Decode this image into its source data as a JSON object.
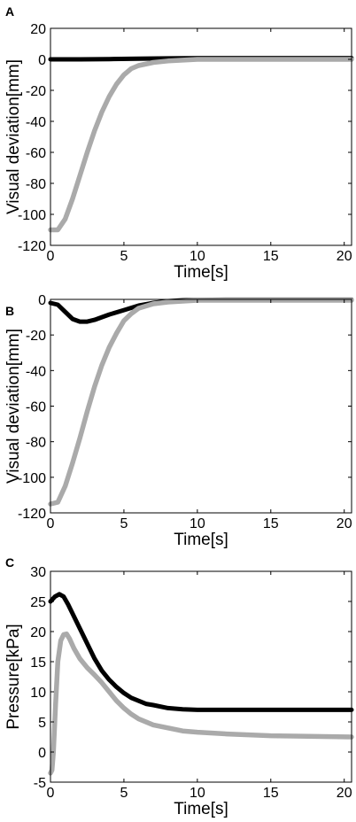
{
  "chart_data": [
    {
      "panel_letter": "A",
      "type": "line",
      "xlabel": "Time[s]",
      "ylabel": "Visual deviation[mm]",
      "xlim": [
        0,
        20.5
      ],
      "ylim": [
        -120,
        20
      ],
      "xticks": [
        0,
        5,
        10,
        15,
        20
      ],
      "yticks": [
        20,
        0,
        -20,
        -40,
        -60,
        -80,
        -100,
        -120
      ],
      "grid": false,
      "series": [
        {
          "color": "#000000",
          "x": [
            0,
            2,
            4,
            6,
            8,
            10,
            15,
            20.5
          ],
          "y": [
            0,
            0,
            0.2,
            0.4,
            0.6,
            0.8,
            0.8,
            0.8
          ]
        },
        {
          "color": "#aaaaaa",
          "x": [
            0,
            0.5,
            1,
            1.5,
            2,
            2.5,
            3,
            3.5,
            4,
            4.5,
            5,
            5.5,
            6,
            7,
            8,
            9,
            10,
            12,
            15,
            20.5
          ],
          "y": [
            -110,
            -110,
            -103,
            -90,
            -75,
            -60,
            -46,
            -34,
            -24,
            -16,
            -10,
            -6,
            -4,
            -2,
            -1,
            -0.5,
            0,
            0,
            0,
            0
          ]
        }
      ]
    },
    {
      "panel_letter": "B",
      "type": "line",
      "xlabel": "Time[s]",
      "ylabel": "Visual deviation[mm]",
      "xlim": [
        0,
        20.5
      ],
      "ylim": [
        -120,
        0
      ],
      "xticks": [
        0,
        5,
        10,
        15,
        20
      ],
      "yticks": [
        0,
        -20,
        -40,
        -60,
        -80,
        -100,
        -120
      ],
      "grid": false,
      "series": [
        {
          "color": "#000000",
          "x": [
            0,
            0.5,
            1,
            1.5,
            2,
            2.5,
            3,
            3.5,
            4,
            5,
            6,
            7,
            8,
            9,
            10,
            12,
            15,
            20.5
          ],
          "y": [
            -2,
            -3,
            -7,
            -11,
            -12.5,
            -12.5,
            -11.5,
            -10,
            -8.5,
            -6,
            -3.5,
            -2,
            -1,
            -0.5,
            -0.3,
            -0.2,
            -0.2,
            -0.2
          ]
        },
        {
          "color": "#aaaaaa",
          "x": [
            0,
            0.5,
            1,
            1.5,
            2,
            2.5,
            3,
            3.5,
            4,
            4.5,
            5,
            5.5,
            6,
            7,
            8,
            9,
            10,
            12,
            15,
            20.5
          ],
          "y": [
            -115,
            -114,
            -105,
            -92,
            -78,
            -63,
            -49,
            -37,
            -27,
            -19,
            -12,
            -8,
            -5,
            -2.5,
            -1.5,
            -1,
            -0.5,
            -0.5,
            -0.5,
            -0.5
          ]
        }
      ]
    },
    {
      "panel_letter": "C",
      "type": "line",
      "xlabel": "Time[s]",
      "ylabel": "Pressure[kPa]",
      "xlim": [
        0,
        20.5
      ],
      "ylim": [
        -5,
        30
      ],
      "xticks": [
        0,
        5,
        10,
        15,
        20
      ],
      "yticks": [
        30,
        25,
        20,
        15,
        10,
        5,
        0,
        -5
      ],
      "grid": false,
      "series": [
        {
          "color": "#000000",
          "x": [
            0,
            0.3,
            0.6,
            0.9,
            1.2,
            1.5,
            2,
            2.5,
            3,
            3.5,
            4,
            4.5,
            5,
            5.5,
            6,
            6.5,
            7,
            8,
            9,
            10,
            12,
            15,
            20.5
          ],
          "y": [
            25,
            25.8,
            26.2,
            25.8,
            24.5,
            23,
            20.5,
            18,
            15.5,
            13.5,
            12,
            10.8,
            9.8,
            9,
            8.5,
            8,
            7.8,
            7.3,
            7.1,
            7,
            7,
            7,
            7
          ]
        },
        {
          "color": "#aaaaaa",
          "x": [
            0,
            0.1,
            0.2,
            0.35,
            0.5,
            0.7,
            0.9,
            1.1,
            1.3,
            1.6,
            2,
            2.5,
            3,
            3.5,
            4,
            4.5,
            5,
            5.5,
            6,
            7,
            8,
            9,
            10,
            12,
            15,
            20.5
          ],
          "y": [
            -3.5,
            -3,
            0,
            8,
            15,
            18.5,
            19.5,
            19.6,
            18.8,
            17.2,
            15.5,
            14,
            12.8,
            11.5,
            10,
            8.5,
            7.3,
            6.3,
            5.5,
            4.5,
            4,
            3.5,
            3.3,
            3,
            2.7,
            2.5
          ]
        }
      ]
    }
  ]
}
